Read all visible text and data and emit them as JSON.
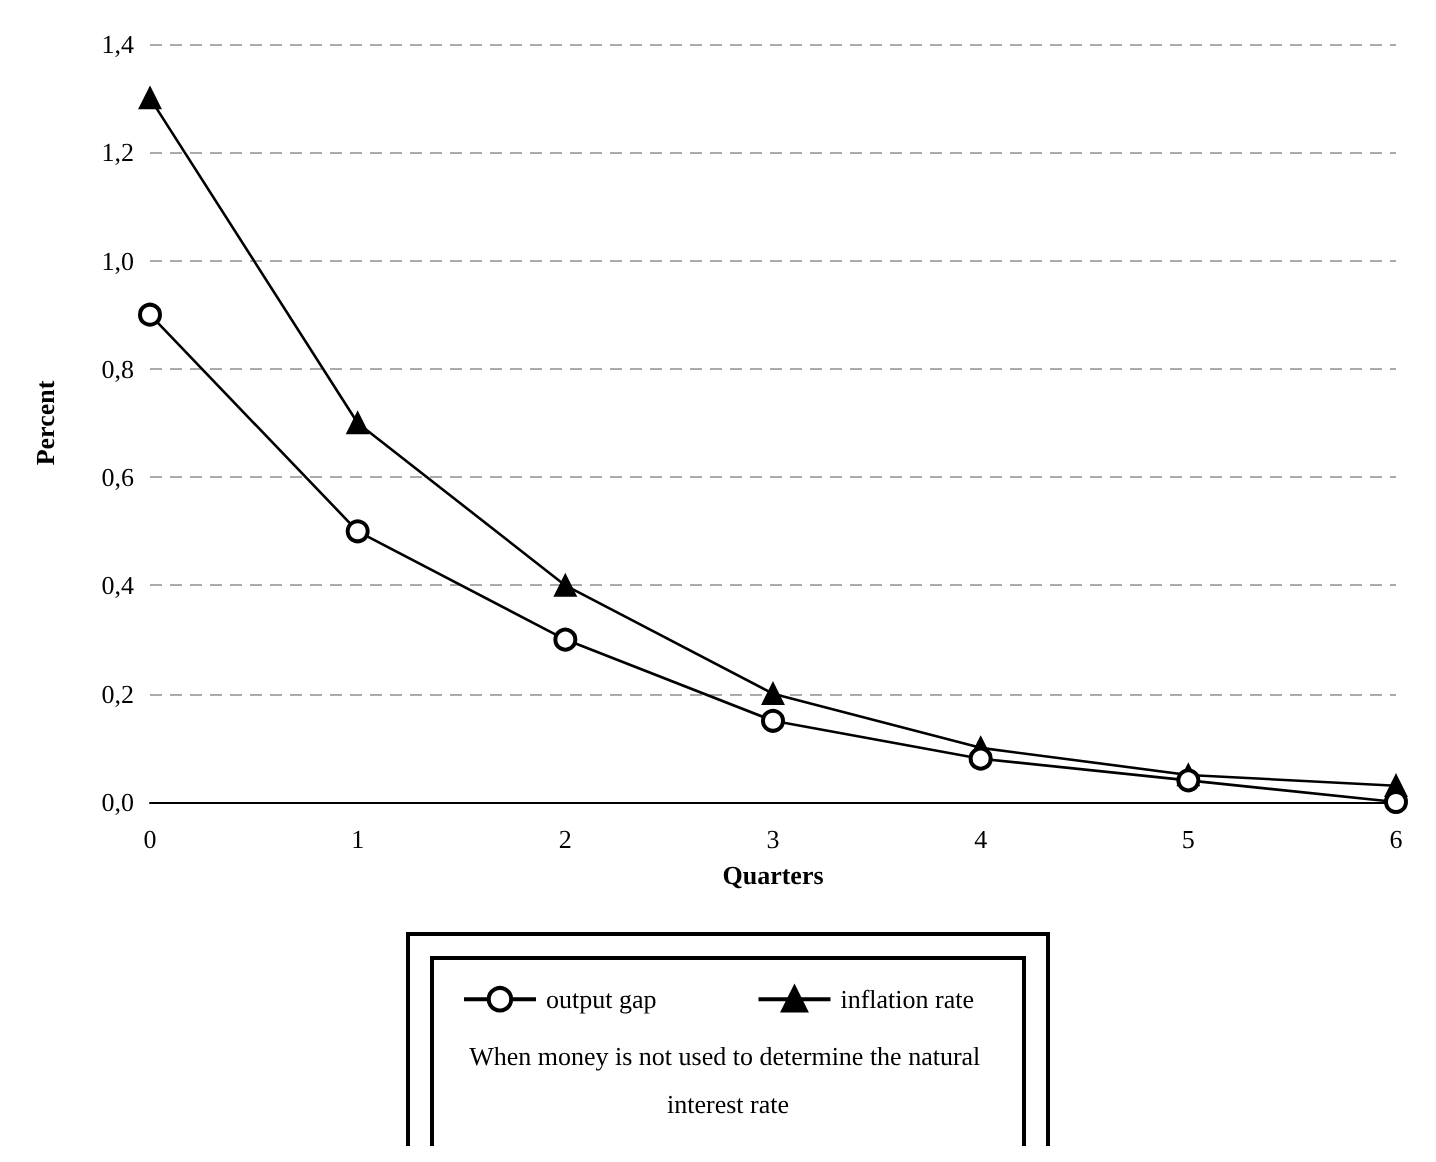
{
  "chart_data": {
    "type": "line",
    "xlabel": "Quarters",
    "ylabel": "Percent",
    "x": [
      0,
      1,
      2,
      3,
      4,
      5,
      6
    ],
    "xlim": [
      0,
      6
    ],
    "xticks": [
      0,
      1,
      2,
      3,
      4,
      5,
      6
    ],
    "ylim": [
      0,
      1.4
    ],
    "yticks": [
      {
        "value": 0,
        "label": "0,0"
      },
      {
        "value": 0.2,
        "label": "0,2"
      },
      {
        "value": 0.4,
        "label": "0,4"
      },
      {
        "value": 0.6,
        "label": "0,6"
      },
      {
        "value": 0.8,
        "label": "0,8"
      },
      {
        "value": 1,
        "label": "1,0"
      },
      {
        "value": 1.2,
        "label": "1,2"
      },
      {
        "value": 1.4,
        "label": "1,4"
      }
    ],
    "grid": "y",
    "legend": "bottom",
    "annotations": [
      "When money is not used to determine the natural interest rate"
    ],
    "series": [
      {
        "name": "output gap",
        "color": "#000000",
        "marker": "circle",
        "values": [
          0.9,
          0.5,
          0.3,
          0.15,
          0.08,
          0.04,
          0.0
        ]
      },
      {
        "name": "inflation rate",
        "color": "#000000",
        "marker": "triangle",
        "values": [
          1.3,
          0.7,
          0.4,
          0.2,
          0.1,
          0.05,
          0.03
        ]
      }
    ]
  }
}
